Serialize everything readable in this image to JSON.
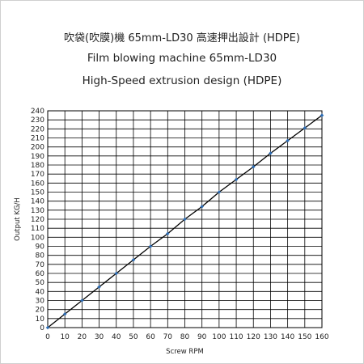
{
  "chart_data": {
    "type": "line",
    "title_lines": [
      "吹袋(吹膜)機 65mm-LD30  高速押出設計 (HDPE)",
      "Film blowing machine 65mm-LD30",
      "High-Speed extrusion design (HDPE)"
    ],
    "xlabel": "Screw RPM",
    "ylabel": "Output KG/H",
    "xlim": [
      0,
      160
    ],
    "ylim": [
      0,
      240
    ],
    "x_ticks": [
      0,
      10,
      20,
      30,
      40,
      50,
      60,
      70,
      80,
      90,
      100,
      110,
      120,
      130,
      140,
      150,
      160
    ],
    "y_ticks": [
      0,
      10,
      20,
      30,
      40,
      50,
      60,
      70,
      80,
      90,
      100,
      110,
      120,
      130,
      140,
      150,
      160,
      170,
      180,
      190,
      200,
      210,
      220,
      230,
      240
    ],
    "grid": true,
    "series": [
      {
        "color": "#2e6db4",
        "x": [
          0,
          10,
          20,
          30,
          40,
          50,
          60,
          70,
          80,
          90,
          100,
          110,
          120,
          130,
          140,
          150,
          160
        ],
        "y": [
          0,
          15,
          30,
          45,
          60,
          75,
          90,
          104,
          120,
          134,
          150,
          164,
          178,
          193,
          207,
          221,
          235
        ]
      }
    ]
  }
}
